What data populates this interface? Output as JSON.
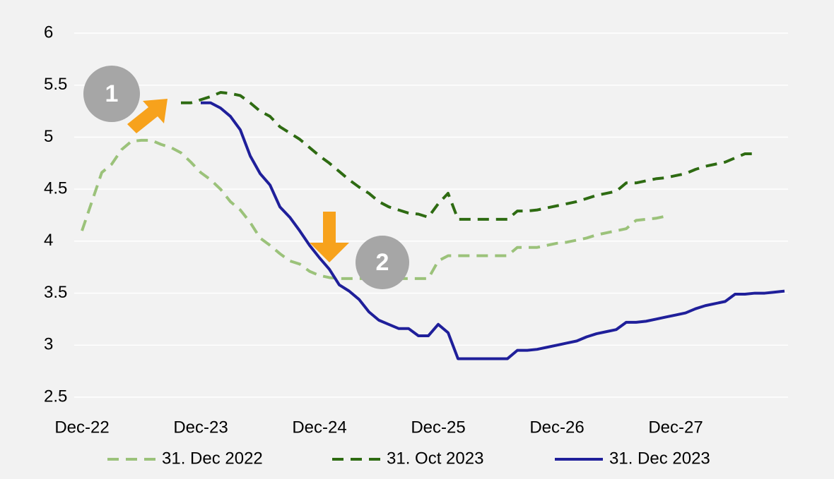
{
  "chart_data": {
    "type": "line",
    "categories": [
      "Dec-22",
      null,
      null,
      null,
      null,
      null,
      null,
      null,
      null,
      null,
      null,
      null,
      "Dec-23",
      null,
      null,
      null,
      null,
      null,
      null,
      null,
      null,
      null,
      null,
      null,
      "Dec-24",
      null,
      null,
      null,
      null,
      null,
      null,
      null,
      null,
      null,
      null,
      null,
      "Dec-25",
      null,
      null,
      null,
      null,
      null,
      null,
      null,
      null,
      null,
      null,
      null,
      "Dec-26",
      null,
      null,
      null,
      null,
      null,
      null,
      null,
      null,
      null,
      null,
      null,
      "Dec-27",
      null,
      null,
      null,
      null,
      null,
      null,
      null,
      null,
      null,
      null,
      null
    ],
    "series": [
      {
        "name": "31. Dec 2022",
        "color": "#9bc27a",
        "dash": "dashed",
        "values": [
          4.1,
          4.38,
          4.66,
          4.74,
          4.88,
          4.96,
          4.97,
          4.97,
          4.93,
          4.9,
          4.85,
          4.76,
          4.66,
          4.59,
          4.5,
          4.38,
          4.3,
          4.18,
          4.03,
          3.96,
          3.88,
          3.81,
          3.78,
          3.71,
          3.67,
          3.65,
          3.64,
          3.64,
          3.64,
          3.64,
          3.64,
          3.64,
          3.64,
          3.64,
          3.64,
          3.64,
          3.81,
          3.86,
          3.86,
          3.86,
          3.86,
          3.86,
          3.86,
          3.86,
          3.94,
          3.94,
          3.94,
          3.96,
          3.98,
          3.99,
          4.01,
          4.03,
          4.06,
          4.08,
          4.1,
          4.12,
          4.2,
          4.21,
          4.22,
          4.24,
          null,
          null,
          null,
          null,
          null,
          null,
          null,
          null,
          null,
          null,
          null,
          null
        ]
      },
      {
        "name": "31. Oct 2023",
        "color": "#2e6b12",
        "dash": "dashed",
        "values": [
          null,
          null,
          null,
          null,
          null,
          null,
          null,
          null,
          null,
          null,
          5.33,
          5.33,
          5.36,
          5.39,
          5.43,
          5.42,
          5.4,
          5.33,
          5.25,
          5.2,
          5.1,
          5.04,
          4.98,
          4.9,
          4.82,
          4.75,
          4.67,
          4.59,
          4.52,
          4.46,
          4.38,
          4.33,
          4.3,
          4.27,
          4.26,
          4.23,
          4.36,
          4.46,
          4.21,
          4.21,
          4.21,
          4.21,
          4.21,
          4.21,
          4.29,
          4.29,
          4.3,
          4.32,
          4.34,
          4.36,
          4.38,
          4.41,
          4.44,
          4.46,
          4.48,
          4.56,
          4.56,
          4.58,
          4.6,
          4.61,
          4.63,
          4.65,
          4.69,
          4.72,
          4.74,
          4.76,
          4.8,
          4.84,
          4.84,
          null,
          null,
          null
        ]
      },
      {
        "name": "31. Dec 2023",
        "color": "#1f1f9a",
        "dash": "solid",
        "values": [
          null,
          null,
          null,
          null,
          null,
          null,
          null,
          null,
          null,
          null,
          null,
          null,
          5.33,
          5.33,
          5.28,
          5.2,
          5.07,
          4.82,
          4.65,
          4.54,
          4.33,
          4.23,
          4.1,
          3.96,
          3.84,
          3.73,
          3.58,
          3.52,
          3.44,
          3.32,
          3.24,
          3.2,
          3.16,
          3.16,
          3.09,
          3.09,
          3.2,
          3.12,
          2.87,
          2.87,
          2.87,
          2.87,
          2.87,
          2.87,
          2.95,
          2.95,
          2.96,
          2.98,
          3.0,
          3.02,
          3.04,
          3.08,
          3.11,
          3.13,
          3.15,
          3.22,
          3.22,
          3.23,
          3.25,
          3.27,
          3.29,
          3.31,
          3.35,
          3.38,
          3.4,
          3.42,
          3.49,
          3.49,
          3.5,
          3.5,
          3.51,
          3.52
        ]
      }
    ],
    "ylim": [
      2.5,
      6
    ],
    "yticks": [
      2.5,
      3,
      3.5,
      4,
      4.5,
      5,
      5.5,
      6
    ],
    "grid": true,
    "legend": "bottom",
    "annotations": [
      "1",
      "2"
    ]
  }
}
